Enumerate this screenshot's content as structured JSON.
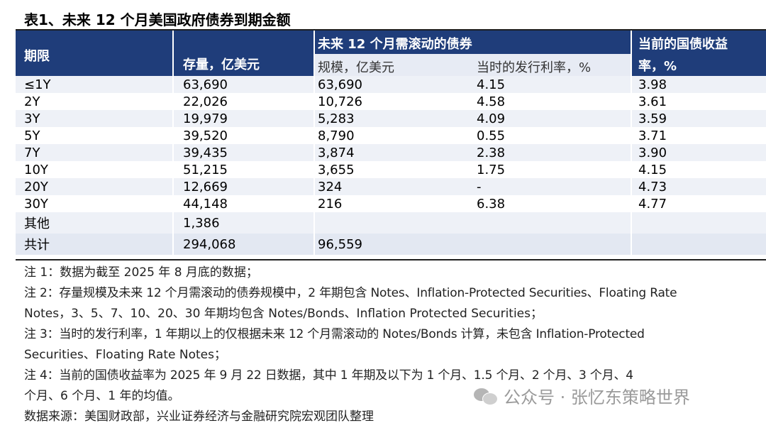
{
  "title": "表1、未来 12 个月美国政府债券到期金额",
  "header": {
    "col_period": "期限",
    "col_stock": "存量，亿美元",
    "group_rollover": "未来 12 个月需滚动的债券",
    "sub_scale": "规模，亿美元",
    "sub_rate": "当时的发行利率，%",
    "col_yield_line1": "当前的国债收益",
    "col_yield_line2": "率，%"
  },
  "rows": [
    {
      "period": "≤1Y",
      "stock": "63,690",
      "scale": "63,690",
      "rate": "4.15",
      "yield": "3.98"
    },
    {
      "period": "2Y",
      "stock": "22,026",
      "scale": "10,726",
      "rate": "4.58",
      "yield": "3.61"
    },
    {
      "period": "3Y",
      "stock": "19,979",
      "scale": "5,283",
      "rate": "4.09",
      "yield": "3.59"
    },
    {
      "period": "5Y",
      "stock": "39,520",
      "scale": "8,790",
      "rate": "0.55",
      "yield": "3.71"
    },
    {
      "period": "7Y",
      "stock": "39,435",
      "scale": "3,874",
      "rate": "2.38",
      "yield": "3.90"
    },
    {
      "period": "10Y",
      "stock": "51,215",
      "scale": "3,655",
      "rate": "1.75",
      "yield": "4.15"
    },
    {
      "period": "20Y",
      "stock": "12,669",
      "scale": "324",
      "rate": "-",
      "yield": "4.73"
    },
    {
      "period": "30Y",
      "stock": "44,148",
      "scale": "216",
      "rate": "6.38",
      "yield": "4.77"
    },
    {
      "period": "其他",
      "stock": "1,386",
      "scale": "",
      "rate": "",
      "yield": ""
    },
    {
      "period": "共计",
      "stock": "294,068",
      "scale": "96,559",
      "rate": "",
      "yield": ""
    }
  ],
  "notes": {
    "n1": "注 1：数据为截至 2025 年 8 月底的数据；",
    "n2a": "注 2：存量规模及未来 12 个月需滚动的债券规模中，2 年期包含 Notes、Inflation-Protected Securities、Floating Rate",
    "n2b": "Notes，3、5、7、10、20、30 年期均包含 Notes/Bonds、Inflation Protected Securities；",
    "n3a": "注 3：当时的发行利率，1 年期以上的仅根据未来 12 个月需滚动的 Notes/Bonds 计算，未包含 Inflation-Protected",
    "n3b": "Securities、Floating Rate Notes；",
    "n4a": "注 4：当前的国债收益率为 2025 年 9 月 22 日数据，其中 1 年期及以下为 1 个月、1.5 个月、2 个月、3 个月、4",
    "n4b": "个月、6 个月、1 年的均值。",
    "source": "数据来源：美国财政部，兴业证券经济与金融研究院宏观团队整理"
  },
  "watermark": {
    "text": "公众号 · 张忆东策略世界",
    "icon": "wechat-icon"
  },
  "colors": {
    "header_bg": "#1f3d7a",
    "alt_row": "#eef1f7",
    "sub_header_bg": "#e7ebf4"
  }
}
